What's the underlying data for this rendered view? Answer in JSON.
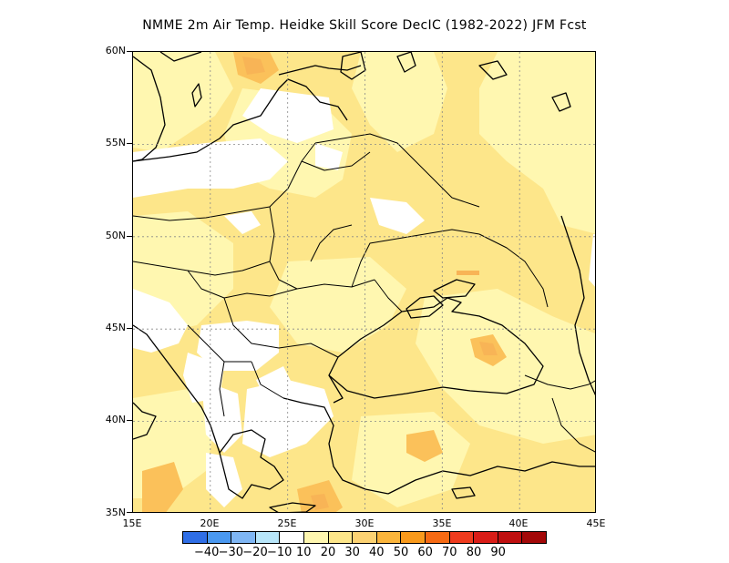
{
  "title": "NMME  2m Air Temp. Heidke Skill Score DecIC (1982-2022) JFM Fcst",
  "map": {
    "lat_labels": [
      "60N",
      "55N",
      "50N",
      "45N",
      "40N",
      "35N"
    ],
    "lon_labels": [
      "15E",
      "20E",
      "25E",
      "30E",
      "35E",
      "40E",
      "45E"
    ],
    "lat_range": [
      35,
      60
    ],
    "lon_range": [
      15,
      45
    ],
    "grid": "dotted",
    "colors": {
      "white": "#ffffff",
      "light": "#fff7b0",
      "mid": "#fde68a",
      "deep": "#fcd273",
      "orange": "#f8b456"
    }
  },
  "legend": {
    "colors": [
      "#2f6ee6",
      "#4a98f0",
      "#7fb6f4",
      "#b8e6fa",
      "#ffffff",
      "#fff7b0",
      "#fde68a",
      "#fcd273",
      "#fbb53c",
      "#f99a1c",
      "#f66a13",
      "#ef3b1e",
      "#d91d17",
      "#bf0f0f",
      "#a30808"
    ],
    "labels": [
      "-40",
      "-30",
      "-20",
      "-10",
      "10",
      "20",
      "30",
      "40",
      "50",
      "60",
      "70",
      "80",
      "90"
    ]
  }
}
